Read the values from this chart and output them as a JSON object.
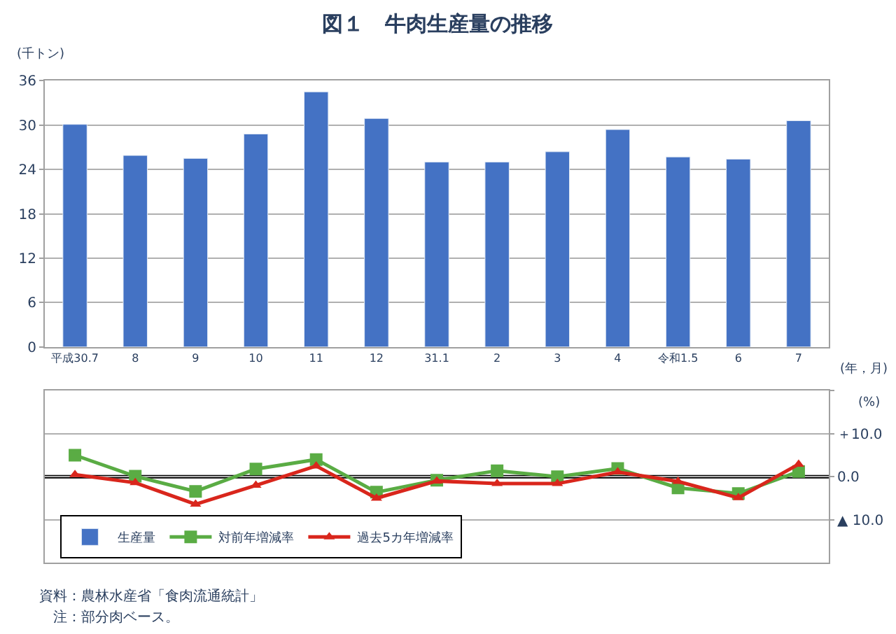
{
  "chart_data": [
    {
      "type": "bar",
      "title": "図１　牛肉生産量の推移",
      "ylabel": "(千トン)",
      "xlabel": "(年，月)",
      "categories": [
        "平成30.7",
        "8",
        "9",
        "10",
        "11",
        "12",
        "31.1",
        "2",
        "3",
        "4",
        "令和1.5",
        "6",
        "7"
      ],
      "series": [
        {
          "name": "生産量",
          "color": "#4472c4",
          "values": [
            30.1,
            25.9,
            25.5,
            28.8,
            34.5,
            30.9,
            25.0,
            25.0,
            26.4,
            29.4,
            25.7,
            25.4,
            30.6
          ]
        }
      ],
      "ylim": [
        0,
        36
      ],
      "yticks": [
        0,
        6,
        12,
        18,
        24,
        30,
        36
      ],
      "grid": "y",
      "legend": "bottom"
    },
    {
      "type": "line",
      "ylabel": "(%)",
      "categories": [
        null,
        null,
        null,
        null,
        null,
        null,
        null,
        null,
        null,
        null,
        null,
        null,
        null
      ],
      "series": [
        {
          "name": "対前年増減率",
          "color": "#5aac44",
          "marker": "square",
          "values": [
            5.0,
            0.1,
            -3.4,
            1.8,
            4.0,
            -3.6,
            -0.8,
            1.4,
            0.0,
            1.9,
            -2.6,
            -3.9,
            1.2
          ]
        },
        {
          "name": "過去5カ年増減率",
          "color": "#d9261c",
          "marker": "triangle",
          "values": [
            0.5,
            -1.4,
            -6.4,
            -2.0,
            2.5,
            -5.0,
            -1.0,
            -1.6,
            -1.6,
            1.1,
            -1.1,
            -4.9,
            2.9
          ]
        }
      ],
      "ylim": [
        -20,
        20
      ],
      "yticks": [
        {
          "value": 20,
          "label": null
        },
        {
          "value": 10,
          "label": "＋10.0"
        },
        {
          "value": 0,
          "label": "0.0"
        },
        {
          "value": -10,
          "label": "▲ 10.0"
        }
      ],
      "grid": "y",
      "tick_labels": "y",
      "legend": "bottom",
      "line_style": "solid",
      "ref_lines": [
        {
          "axis": "y",
          "value": 0,
          "color": "#000000"
        }
      ],
      "annotations": [
        "資料：農林水産省「食肉流通統計」",
        "　注：部分肉ベース。"
      ]
    }
  ]
}
